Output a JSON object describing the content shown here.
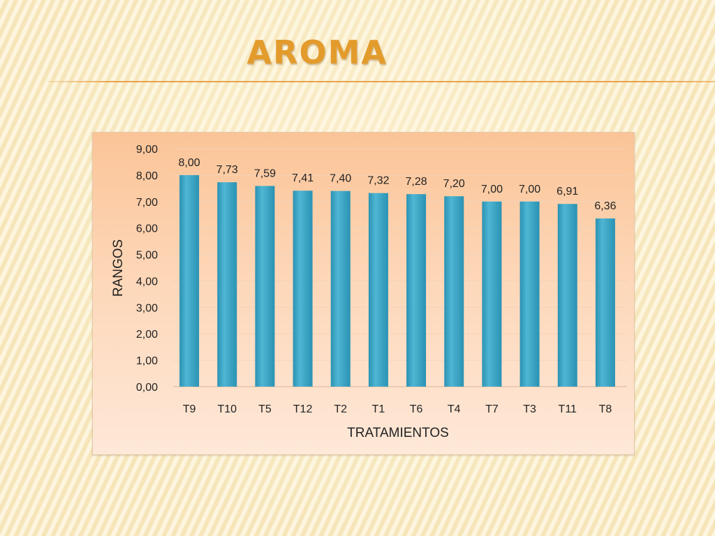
{
  "slide": {
    "title": "AROMA"
  },
  "chart_data": {
    "type": "bar",
    "categories": [
      "T9",
      "T10",
      "T5",
      "T12",
      "T2",
      "T1",
      "T6",
      "T4",
      "T7",
      "T3",
      "T11",
      "T8"
    ],
    "values": [
      8.0,
      7.73,
      7.59,
      7.41,
      7.4,
      7.32,
      7.28,
      7.2,
      7.0,
      7.0,
      6.91,
      6.36
    ],
    "data_labels": [
      "8,00",
      "7,73",
      "7,59",
      "7,41",
      "7,40",
      "7,32",
      "7,28",
      "7,20",
      "7,00",
      "7,00",
      "6,91",
      "6,36"
    ],
    "title": "",
    "xlabel": "TRATAMIENTOS",
    "ylabel": "RANGOS",
    "ylim": [
      0,
      9
    ],
    "yticks": [
      0,
      1,
      2,
      3,
      4,
      5,
      6,
      7,
      8,
      9
    ],
    "ytick_labels": [
      "0,00",
      "1,00",
      "2,00",
      "3,00",
      "4,00",
      "5,00",
      "6,00",
      "7,00",
      "8,00",
      "9,00"
    ],
    "grid": true,
    "legend": "none",
    "bar_color": "#3aa9c9"
  }
}
